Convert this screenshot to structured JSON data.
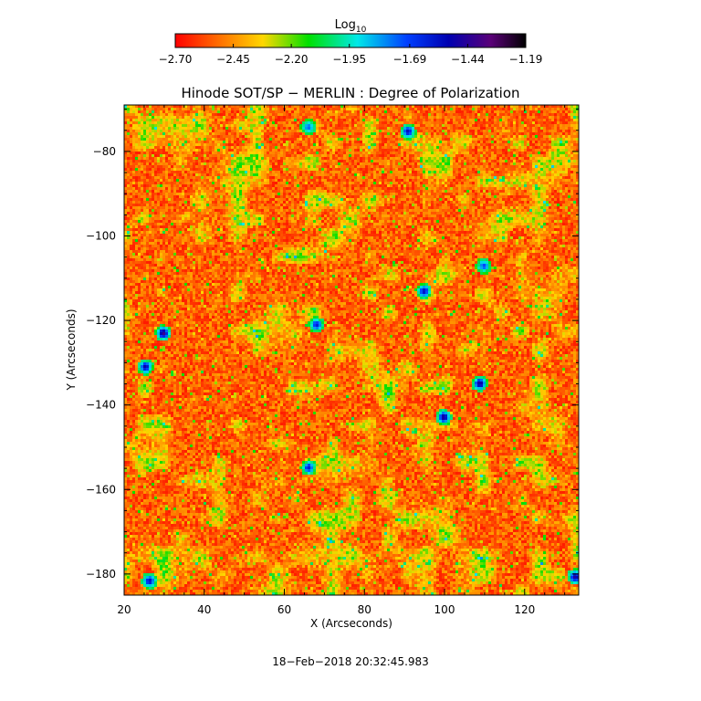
{
  "chart_data": {
    "type": "heatmap",
    "title": "Hinode SOT/SP − MERLIN : Degree of Polarization",
    "xlabel": "X (Arcseconds)",
    "ylabel": "Y (Arcseconds)",
    "xlim": [
      20,
      133.5
    ],
    "ylim": [
      -185,
      -69
    ],
    "x_ticks": [
      20,
      40,
      60,
      80,
      100,
      120
    ],
    "y_ticks": [
      -80,
      -100,
      -120,
      -140,
      -160,
      -180
    ],
    "x_tick_labels": [
      "20",
      "40",
      "60",
      "80",
      "100",
      "120"
    ],
    "y_tick_labels": [
      "−80",
      "−100",
      "−120",
      "−140",
      "−160",
      "−180"
    ],
    "colorbar": {
      "label_base": "Log",
      "label_sub": "10",
      "min": -2.7,
      "max": -1.19,
      "tick_values": [
        -2.7,
        -2.45,
        -2.2,
        -1.95,
        -1.69,
        -1.44,
        -1.19
      ],
      "tick_labels": [
        "−2.70",
        "−2.45",
        "−2.20",
        "−1.95",
        "−1.69",
        "−1.44",
        "−1.19"
      ],
      "colormap": "rainbow (red → orange → yellow → green → cyan → blue → purple → black)"
    },
    "grid": false,
    "description_of_values": "log10 degree of polarization, mostly between -2.70 and -2.45 (red/orange) with scattered yellow/green network patches and a few blue/dark features",
    "features": [
      {
        "x": 29.5,
        "y": -123,
        "value": -1.4
      },
      {
        "x": 25,
        "y": -131,
        "value": -1.5
      },
      {
        "x": 109,
        "y": -135,
        "value": -1.45
      },
      {
        "x": 100,
        "y": -143,
        "value": -1.45
      },
      {
        "x": 91,
        "y": -75,
        "value": -1.55
      },
      {
        "x": 95,
        "y": -113,
        "value": -1.55
      },
      {
        "x": 66,
        "y": -155,
        "value": -1.6
      },
      {
        "x": 133,
        "y": -181,
        "value": -1.45
      },
      {
        "x": 26,
        "y": -182,
        "value": -1.55
      },
      {
        "x": 68,
        "y": -121,
        "value": -1.6
      },
      {
        "x": 110,
        "y": -107,
        "value": -1.7
      },
      {
        "x": 66,
        "y": -74,
        "value": -1.75
      }
    ]
  },
  "timestamp": "18−Feb−2018 20:32:45.983"
}
